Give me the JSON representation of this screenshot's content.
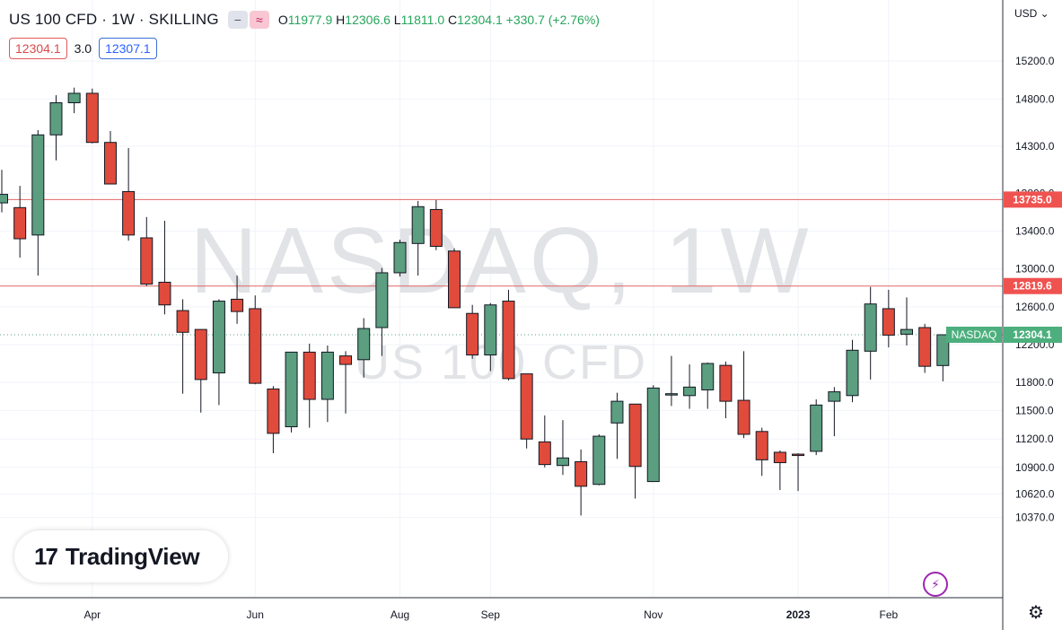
{
  "header": {
    "title": "US 100 CFD · 1W · SKILLING",
    "pill_minus": "−",
    "pill_wave": "≈",
    "ohlc": {
      "o_label": "O",
      "o": "11977.9",
      "h_label": "H",
      "h": "12306.6",
      "l_label": "L",
      "l": "11811.0",
      "c_label": "C",
      "c": "12304.1",
      "change": "+330.7 (+2.76%)"
    }
  },
  "quotes": {
    "sell": "12304.1",
    "spread": "3.0",
    "buy": "12307.1"
  },
  "currency": "USD ⌄",
  "watermark": {
    "line1": "NASDAQ, 1W",
    "line2": "US 100 CFD"
  },
  "logo": {
    "mark": "17",
    "text": "TradingView"
  },
  "icons": {
    "settings": "gear-icon",
    "lightning": "lightning-icon"
  },
  "colors": {
    "up": "#5b9e80",
    "down": "#e04b3c",
    "resistance": "#e06666",
    "last_price": "#4caf7d"
  },
  "chart_data": {
    "type": "candlestick",
    "interval": "1W",
    "y_ticks": [
      15200,
      14800,
      14300,
      13800,
      13400,
      13000,
      12600,
      12200,
      11800,
      11500,
      11200,
      10900,
      10620,
      10370
    ],
    "y_tick_labels": [
      "15200.0",
      "14800.0",
      "14300.0",
      "13800.0",
      "13400.0",
      "13000.0",
      "12600.0",
      "12200.0",
      "11800.0",
      "11500.0",
      "11200.0",
      "10900.0",
      "10620.0",
      "10370.0"
    ],
    "x_labels": [
      {
        "label": "Apr",
        "index": 5
      },
      {
        "label": "Jun",
        "index": 14
      },
      {
        "label": "Aug",
        "index": 22
      },
      {
        "label": "Sep",
        "index": 27
      },
      {
        "label": "Nov",
        "index": 36
      },
      {
        "label": "2023",
        "index": 44,
        "bold": true
      },
      {
        "label": "Feb",
        "index": 49
      }
    ],
    "horizontal_lines": [
      {
        "value": 13735.0,
        "label": "13735.0"
      },
      {
        "value": 12819.6,
        "label": "12819.6"
      }
    ],
    "last_price": {
      "value": 12304.1,
      "label": "12304.1",
      "name": "NASDAQ"
    },
    "candles": [
      {
        "o": 13700,
        "h": 14050,
        "l": 13600,
        "c": 13790
      },
      {
        "o": 13650,
        "h": 13880,
        "l": 13120,
        "c": 13320
      },
      {
        "o": 13360,
        "h": 14470,
        "l": 12930,
        "c": 14420
      },
      {
        "o": 14420,
        "h": 14840,
        "l": 14150,
        "c": 14760
      },
      {
        "o": 14760,
        "h": 14920,
        "l": 14650,
        "c": 14860
      },
      {
        "o": 14860,
        "h": 14910,
        "l": 14330,
        "c": 14340
      },
      {
        "o": 14340,
        "h": 14460,
        "l": 13900,
        "c": 13900
      },
      {
        "o": 13820,
        "h": 14280,
        "l": 13300,
        "c": 13360
      },
      {
        "o": 13330,
        "h": 13550,
        "l": 12820,
        "c": 12840
      },
      {
        "o": 12860,
        "h": 13510,
        "l": 12520,
        "c": 12620
      },
      {
        "o": 12560,
        "h": 12680,
        "l": 11680,
        "c": 12330
      },
      {
        "o": 12360,
        "h": 12360,
        "l": 11480,
        "c": 11830
      },
      {
        "o": 11900,
        "h": 12680,
        "l": 11560,
        "c": 12660
      },
      {
        "o": 12680,
        "h": 12930,
        "l": 12420,
        "c": 12550
      },
      {
        "o": 12580,
        "h": 12720,
        "l": 11780,
        "c": 11790
      },
      {
        "o": 11730,
        "h": 11760,
        "l": 11050,
        "c": 11260
      },
      {
        "o": 11330,
        "h": 12120,
        "l": 11270,
        "c": 12120
      },
      {
        "o": 12120,
        "h": 12210,
        "l": 11320,
        "c": 11620
      },
      {
        "o": 11620,
        "h": 12190,
        "l": 11380,
        "c": 12120
      },
      {
        "o": 12080,
        "h": 12130,
        "l": 11470,
        "c": 11990
      },
      {
        "o": 12040,
        "h": 12480,
        "l": 11850,
        "c": 12370
      },
      {
        "o": 12380,
        "h": 13010,
        "l": 12080,
        "c": 12960
      },
      {
        "o": 12960,
        "h": 13310,
        "l": 12920,
        "c": 13280
      },
      {
        "o": 13270,
        "h": 13720,
        "l": 12930,
        "c": 13660
      },
      {
        "o": 13630,
        "h": 13730,
        "l": 13200,
        "c": 13240
      },
      {
        "o": 13190,
        "h": 13220,
        "l": 12590,
        "c": 12590
      },
      {
        "o": 12530,
        "h": 12620,
        "l": 12050,
        "c": 12090
      },
      {
        "o": 12090,
        "h": 12640,
        "l": 11920,
        "c": 12620
      },
      {
        "o": 12660,
        "h": 12780,
        "l": 11820,
        "c": 11840
      },
      {
        "o": 11890,
        "h": 11890,
        "l": 11100,
        "c": 11200
      },
      {
        "o": 11170,
        "h": 11450,
        "l": 10900,
        "c": 10930
      },
      {
        "o": 10920,
        "h": 11400,
        "l": 10820,
        "c": 11000
      },
      {
        "o": 10960,
        "h": 11090,
        "l": 10390,
        "c": 10700
      },
      {
        "o": 10720,
        "h": 11250,
        "l": 10710,
        "c": 11230
      },
      {
        "o": 11370,
        "h": 11690,
        "l": 10990,
        "c": 11600
      },
      {
        "o": 11570,
        "h": 11570,
        "l": 10570,
        "c": 10910
      },
      {
        "o": 10750,
        "h": 11770,
        "l": 10760,
        "c": 11740
      },
      {
        "o": 11680,
        "h": 12080,
        "l": 11550,
        "c": 11680
      },
      {
        "o": 11660,
        "h": 11990,
        "l": 11520,
        "c": 11750
      },
      {
        "o": 11720,
        "h": 12010,
        "l": 11520,
        "c": 12000
      },
      {
        "o": 11980,
        "h": 12020,
        "l": 11420,
        "c": 11600
      },
      {
        "o": 11610,
        "h": 12130,
        "l": 11210,
        "c": 11250
      },
      {
        "o": 11280,
        "h": 11320,
        "l": 10810,
        "c": 10980
      },
      {
        "o": 11060,
        "h": 11080,
        "l": 10660,
        "c": 10950
      },
      {
        "o": 11040,
        "h": 11050,
        "l": 10650,
        "c": 11030
      },
      {
        "o": 11070,
        "h": 11620,
        "l": 11030,
        "c": 11560
      },
      {
        "o": 11600,
        "h": 11750,
        "l": 11230,
        "c": 11700
      },
      {
        "o": 11660,
        "h": 12250,
        "l": 11590,
        "c": 12140
      },
      {
        "o": 12130,
        "h": 12810,
        "l": 11830,
        "c": 12630
      },
      {
        "o": 12580,
        "h": 12780,
        "l": 12170,
        "c": 12300
      },
      {
        "o": 12310,
        "h": 12700,
        "l": 12190,
        "c": 12360
      },
      {
        "o": 12380,
        "h": 12420,
        "l": 11900,
        "c": 11970
      },
      {
        "o": 11977.9,
        "h": 12306.6,
        "l": 11811.0,
        "c": 12304.1
      }
    ]
  }
}
